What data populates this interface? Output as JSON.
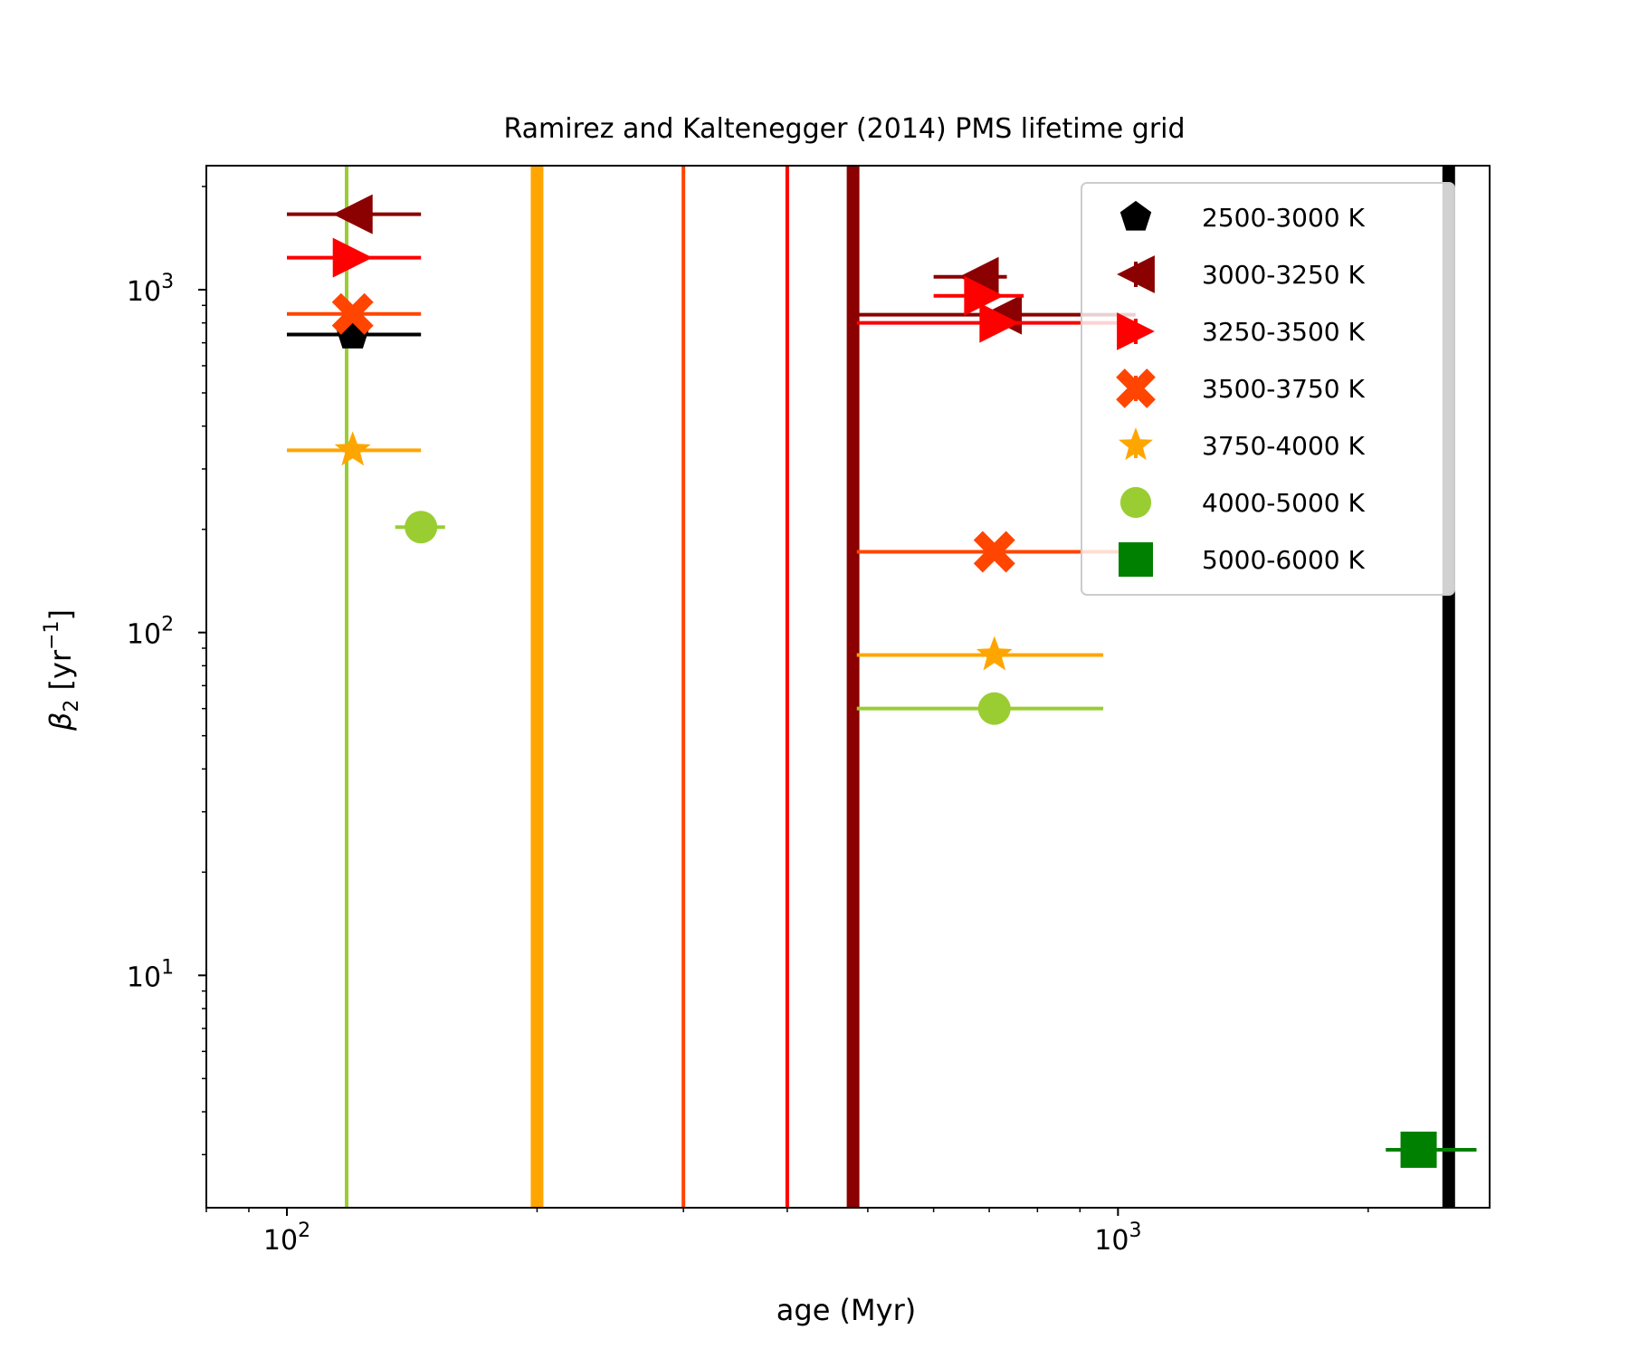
{
  "chart_data": {
    "type": "scatter",
    "title": "Ramirez and Kaltenegger (2014) PMS lifetime grid",
    "xlabel": "age (Myr)",
    "ylabel_main": "β",
    "ylabel_sub": "2",
    "ylabel_rest": " [yr",
    "ylabel_sup": "−1",
    "ylabel_close": "]",
    "xscale": "log",
    "yscale": "log",
    "xlim": [
      80,
      2800
    ],
    "ylim": [
      2.1,
      2300
    ],
    "xticks": [
      {
        "value": 100,
        "base": "10",
        "exp": "2"
      },
      {
        "value": 1000,
        "base": "10",
        "exp": "3"
      }
    ],
    "yticks": [
      {
        "value": 10,
        "base": "10",
        "exp": "1"
      },
      {
        "value": 100,
        "base": "10",
        "exp": "2"
      },
      {
        "value": 1000,
        "base": "10",
        "exp": "3"
      }
    ],
    "legend_position": "upper-right",
    "series": [
      {
        "name": "2500-3000 K",
        "color": "#000000",
        "marker": "pentagon",
        "points": [
          {
            "x": 120,
            "y": 740,
            "xerr": [
              100,
              145
            ]
          }
        ],
        "vline": 2500,
        "vline_width": 14
      },
      {
        "name": "3000-3250 K",
        "color": "#8b0000",
        "marker": "triangle-left",
        "points": [
          {
            "x": 120,
            "y": 1660,
            "xerr": [
              100,
              145
            ]
          },
          {
            "x": 680,
            "y": 1090,
            "xerr": [
              600,
              735
            ]
          },
          {
            "x": 725,
            "y": 845,
            "xerr": [
              485,
              1050
            ]
          }
        ],
        "vline": 480,
        "vline_width": 14
      },
      {
        "name": "3250-3500 K",
        "color": "#ff0000",
        "marker": "triangle-right",
        "points": [
          {
            "x": 120,
            "y": 1240,
            "xerr": [
              100,
              145
            ]
          },
          {
            "x": 690,
            "y": 960,
            "xerr": [
              600,
              770
            ]
          },
          {
            "x": 720,
            "y": 800,
            "xerr": [
              485,
              1050
            ]
          }
        ],
        "vline": 400,
        "vline_width": 4
      },
      {
        "name": "3500-3750 K",
        "color": "#ff4500",
        "marker": "x-filled",
        "points": [
          {
            "x": 120,
            "y": 850,
            "xerr": [
              100,
              145
            ]
          },
          {
            "x": 710,
            "y": 172,
            "xerr": [
              485,
              1050
            ]
          }
        ],
        "vline": 300,
        "vline_width": 4
      },
      {
        "name": "3750-4000 K",
        "color": "#ffa500",
        "marker": "star",
        "points": [
          {
            "x": 120,
            "y": 340,
            "xerr": [
              100,
              145
            ]
          },
          {
            "x": 710,
            "y": 86,
            "xerr": [
              485,
              960
            ]
          }
        ],
        "vline": 200,
        "vline_width": 14
      },
      {
        "name": "4000-5000 K",
        "color": "#9acd32",
        "marker": "circle",
        "points": [
          {
            "x": 145,
            "y": 203,
            "xerr": [
              135,
              155
            ]
          },
          {
            "x": 710,
            "y": 60,
            "xerr": [
              485,
              960
            ]
          }
        ],
        "vline": 118,
        "vline_width": 4
      },
      {
        "name": "5000-6000 K",
        "color": "#008000",
        "marker": "square",
        "points": [
          {
            "x": 2300,
            "y": 3.1,
            "xerr": [
              2100,
              2700
            ]
          }
        ],
        "vline": null,
        "vline_width": 0
      }
    ]
  }
}
